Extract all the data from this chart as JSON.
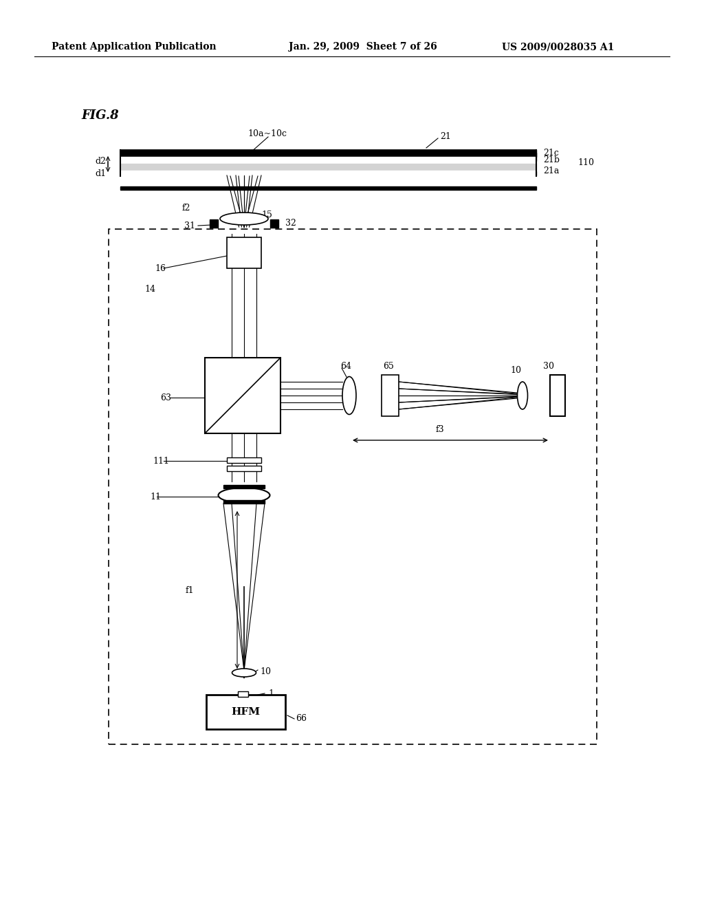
{
  "bg_color": "#ffffff",
  "header_left": "Patent Application Publication",
  "header_center": "Jan. 29, 2009  Sheet 7 of 26",
  "header_right": "US 2009/0028035 A1",
  "fig_label": "FIG.8",
  "title_fontsize": 11,
  "header_fontsize": 10
}
